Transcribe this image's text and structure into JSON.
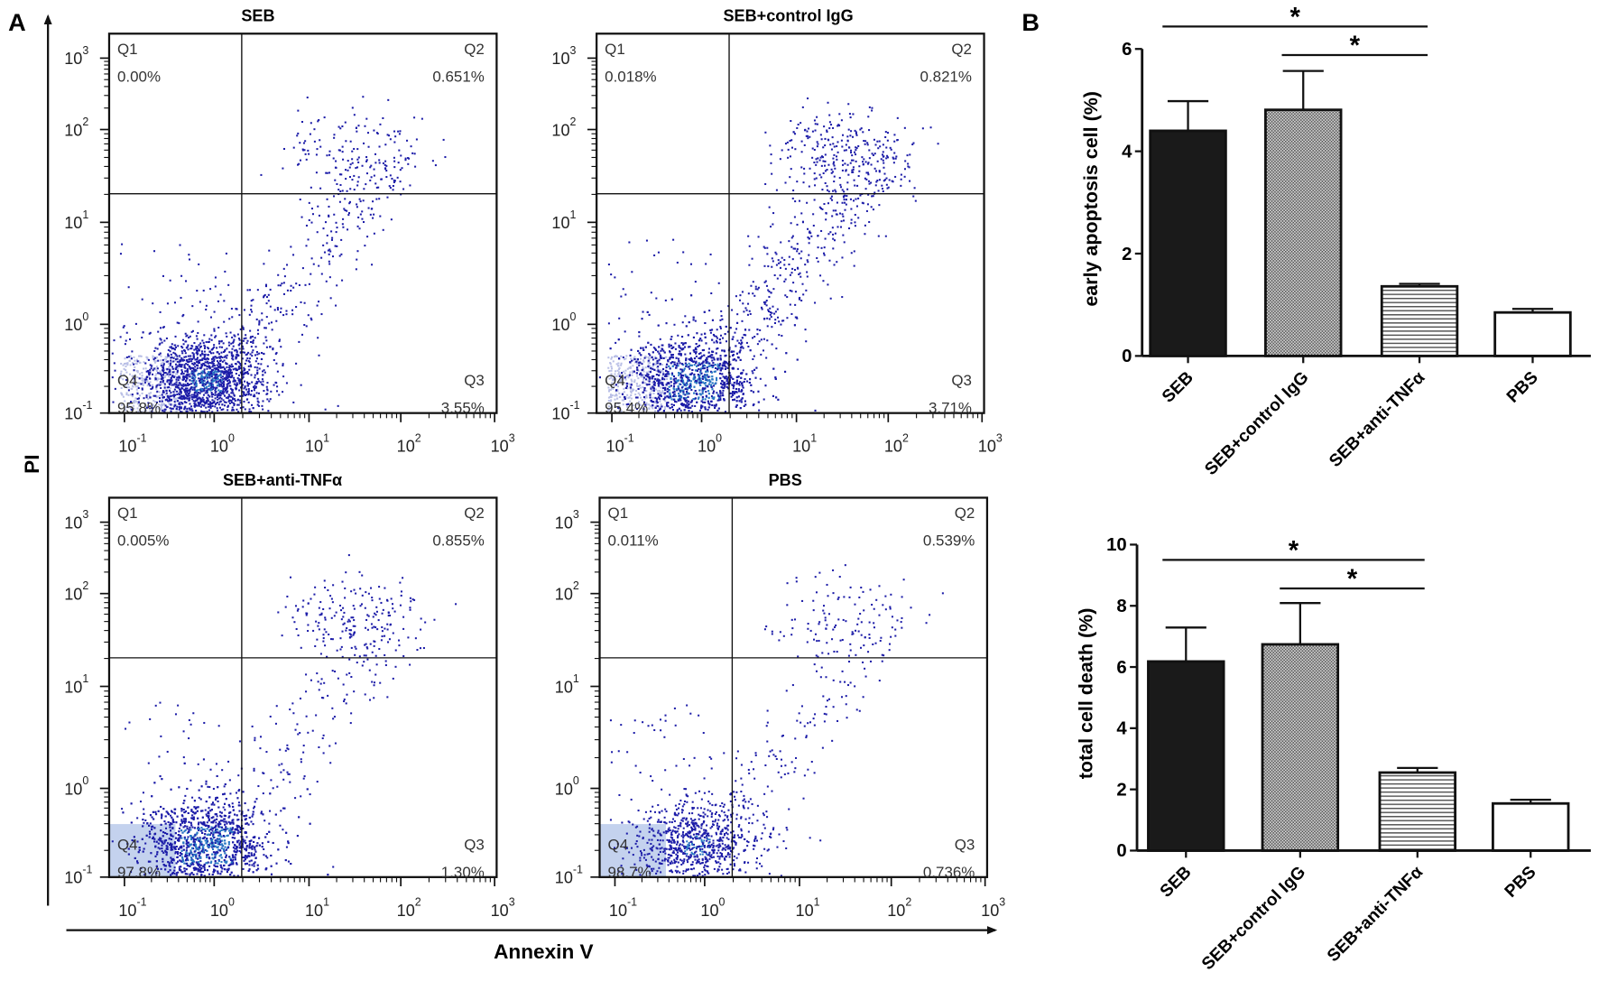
{
  "panel_labels": {
    "a": "A",
    "b": "B"
  },
  "flow_axes": {
    "y_label": "PI",
    "x_label": "Annexin V",
    "tick_base": "10",
    "tick_exponents": [
      "-1",
      "0",
      "1",
      "2",
      "3"
    ]
  },
  "chart_data": [
    {
      "type": "scatter",
      "title": "SEB",
      "quadrants": [
        {
          "name": "Q1",
          "percent": "0.00%"
        },
        {
          "name": "Q2",
          "percent": "0.651%"
        },
        {
          "name": "Q3",
          "percent": "3.55%"
        },
        {
          "name": "Q4",
          "percent": "95.8%"
        }
      ]
    },
    {
      "type": "scatter",
      "title": "SEB+control IgG",
      "quadrants": [
        {
          "name": "Q1",
          "percent": "0.018%"
        },
        {
          "name": "Q2",
          "percent": "0.821%"
        },
        {
          "name": "Q3",
          "percent": "3.71%"
        },
        {
          "name": "Q4",
          "percent": "95.4%"
        }
      ]
    },
    {
      "type": "scatter",
      "title": "SEB+anti-TNFα",
      "quadrants": [
        {
          "name": "Q1",
          "percent": "0.005%"
        },
        {
          "name": "Q2",
          "percent": "0.855%"
        },
        {
          "name": "Q3",
          "percent": "1.30%"
        },
        {
          "name": "Q4",
          "percent": "97.8%"
        }
      ]
    },
    {
      "type": "scatter",
      "title": "PBS",
      "quadrants": [
        {
          "name": "Q1",
          "percent": "0.011%"
        },
        {
          "name": "Q2",
          "percent": "0.539%"
        },
        {
          "name": "Q3",
          "percent": "0.736%"
        },
        {
          "name": "Q4",
          "percent": "98.7%"
        }
      ]
    },
    {
      "type": "bar",
      "ylabel": "early apoptosis cell (%)",
      "ylim": [
        0,
        6
      ],
      "yticks": [
        0,
        2,
        4,
        6
      ],
      "categories": [
        "SEB",
        "SEB+control IgG",
        "SEB+anti-TNFα",
        "PBS"
      ],
      "values": [
        4.4,
        4.81,
        1.36,
        0.85
      ],
      "error_upper": [
        4.98,
        5.57,
        1.41,
        0.92
      ],
      "significance": [
        {
          "from": 0,
          "to": 2,
          "label": "*"
        },
        {
          "from": 1,
          "to": 2,
          "label": "*"
        }
      ]
    },
    {
      "type": "bar",
      "ylabel": "total cell death (%)",
      "ylim": [
        0,
        10
      ],
      "yticks": [
        0,
        2,
        4,
        6,
        8,
        10
      ],
      "categories": [
        "SEB",
        "SEB+control IgG",
        "SEB+anti-TNFα",
        "PBS"
      ],
      "values": [
        6.18,
        6.74,
        2.55,
        1.54
      ],
      "error_upper": [
        7.29,
        8.09,
        2.7,
        1.66
      ],
      "significance": [
        {
          "from": 0,
          "to": 2,
          "label": "*"
        },
        {
          "from": 1,
          "to": 2,
          "label": "*"
        }
      ]
    }
  ],
  "colors": {
    "dot": "#1c1ca8",
    "dot_dense": "#2a78c4",
    "dot_light": "#b9bfe6",
    "bar_solid": "#1a1a1a"
  }
}
